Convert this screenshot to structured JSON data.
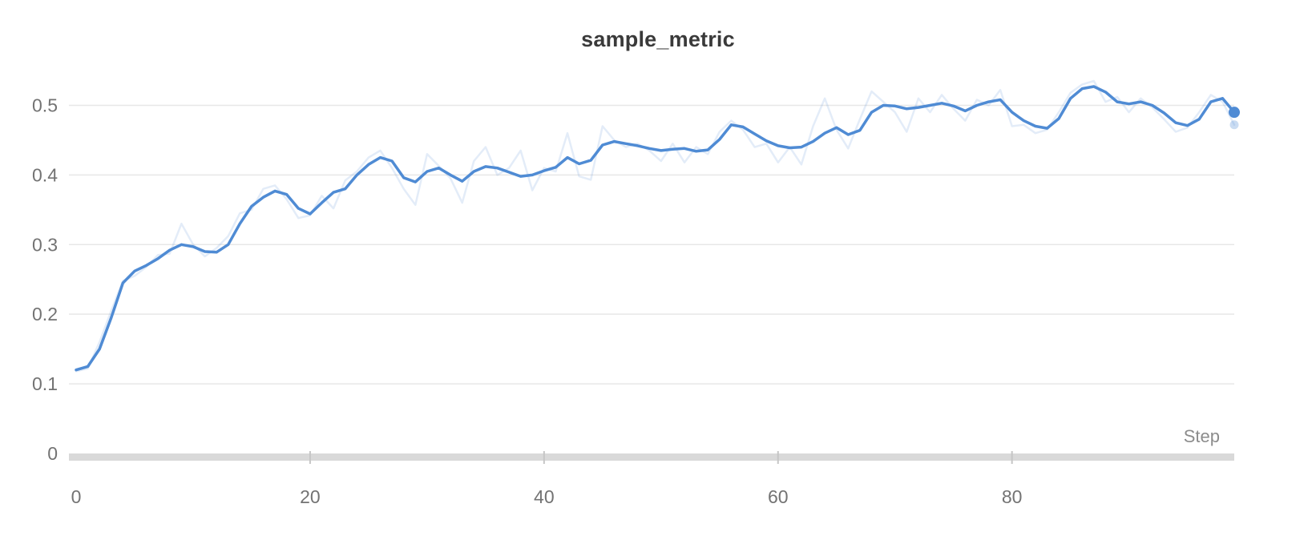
{
  "header": {
    "title": "sample_metric"
  },
  "axis": {
    "x_unit_label": "Step"
  },
  "colors": {
    "line": "#4f8bd4",
    "raw_line": "#4f8bd4",
    "grid": "#e7e7e7",
    "axis_bar": "#d9d9d9",
    "axis_notch": "#c6c6c6",
    "tick_text": "#737373",
    "axis_label_text": "#8c8c8c",
    "title_text": "#3a3a3a"
  },
  "chart_data": {
    "type": "line",
    "title": "sample_metric",
    "xlabel": "Step",
    "ylabel": "",
    "xlim": [
      0,
      99
    ],
    "ylim": [
      0,
      0.55
    ],
    "xticks": [
      0,
      20,
      40,
      60,
      80
    ],
    "yticks": [
      0,
      0.1,
      0.2,
      0.3,
      0.4,
      0.5
    ],
    "grid": "horizontal-only",
    "legend": "none",
    "x": [
      0,
      1,
      2,
      3,
      4,
      5,
      6,
      7,
      8,
      9,
      10,
      11,
      12,
      13,
      14,
      15,
      16,
      17,
      18,
      19,
      20,
      21,
      22,
      23,
      24,
      25,
      26,
      27,
      28,
      29,
      30,
      31,
      32,
      33,
      34,
      35,
      36,
      37,
      38,
      39,
      40,
      41,
      42,
      43,
      44,
      45,
      46,
      47,
      48,
      49,
      50,
      51,
      52,
      53,
      54,
      55,
      56,
      57,
      58,
      59,
      60,
      61,
      62,
      63,
      64,
      65,
      66,
      67,
      68,
      69,
      70,
      71,
      72,
      73,
      74,
      75,
      76,
      77,
      78,
      79,
      80,
      81,
      82,
      83,
      84,
      85,
      86,
      87,
      88,
      89,
      90,
      91,
      92,
      93,
      94,
      95,
      96,
      97,
      98,
      99
    ],
    "series": [
      {
        "name": "sample_metric (raw)",
        "style": "faint",
        "values": [
          0.118,
          0.122,
          0.16,
          0.205,
          0.248,
          0.255,
          0.268,
          0.285,
          0.287,
          0.33,
          0.3,
          0.283,
          0.295,
          0.312,
          0.345,
          0.35,
          0.38,
          0.385,
          0.365,
          0.338,
          0.342,
          0.37,
          0.352,
          0.392,
          0.405,
          0.425,
          0.435,
          0.41,
          0.38,
          0.357,
          0.43,
          0.413,
          0.395,
          0.36,
          0.42,
          0.44,
          0.4,
          0.41,
          0.435,
          0.378,
          0.41,
          0.405,
          0.46,
          0.398,
          0.393,
          0.47,
          0.45,
          0.44,
          0.445,
          0.435,
          0.42,
          0.445,
          0.418,
          0.44,
          0.43,
          0.462,
          0.478,
          0.465,
          0.44,
          0.445,
          0.418,
          0.44,
          0.415,
          0.47,
          0.51,
          0.465,
          0.438,
          0.48,
          0.52,
          0.505,
          0.49,
          0.462,
          0.51,
          0.49,
          0.515,
          0.495,
          0.478,
          0.508,
          0.5,
          0.522,
          0.47,
          0.472,
          0.46,
          0.465,
          0.49,
          0.518,
          0.53,
          0.535,
          0.505,
          0.512,
          0.49,
          0.51,
          0.497,
          0.48,
          0.462,
          0.468,
          0.49,
          0.515,
          0.505,
          0.472
        ]
      },
      {
        "name": "sample_metric (smoothed)",
        "style": "solid",
        "values": [
          0.12,
          0.125,
          0.15,
          0.195,
          0.245,
          0.262,
          0.27,
          0.28,
          0.292,
          0.3,
          0.297,
          0.29,
          0.289,
          0.3,
          0.33,
          0.355,
          0.368,
          0.377,
          0.372,
          0.352,
          0.344,
          0.36,
          0.375,
          0.38,
          0.4,
          0.415,
          0.425,
          0.42,
          0.396,
          0.39,
          0.405,
          0.41,
          0.4,
          0.391,
          0.405,
          0.412,
          0.41,
          0.404,
          0.398,
          0.4,
          0.406,
          0.411,
          0.425,
          0.416,
          0.421,
          0.443,
          0.448,
          0.445,
          0.442,
          0.438,
          0.435,
          0.437,
          0.438,
          0.434,
          0.436,
          0.451,
          0.472,
          0.469,
          0.459,
          0.449,
          0.442,
          0.439,
          0.44,
          0.448,
          0.46,
          0.468,
          0.458,
          0.464,
          0.49,
          0.5,
          0.499,
          0.495,
          0.497,
          0.5,
          0.503,
          0.499,
          0.492,
          0.5,
          0.505,
          0.508,
          0.49,
          0.478,
          0.47,
          0.467,
          0.481,
          0.51,
          0.524,
          0.527,
          0.519,
          0.505,
          0.502,
          0.505,
          0.5,
          0.489,
          0.475,
          0.471,
          0.48,
          0.505,
          0.51,
          0.49
        ]
      }
    ]
  }
}
